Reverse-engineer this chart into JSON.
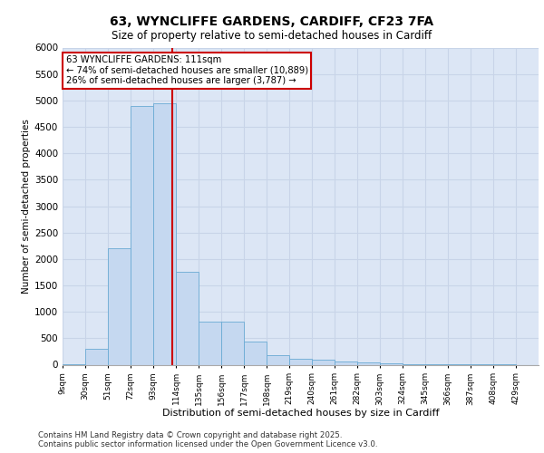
{
  "title_line1": "63, WYNCLIFFE GARDENS, CARDIFF, CF23 7FA",
  "title_line2": "Size of property relative to semi-detached houses in Cardiff",
  "xlabel": "Distribution of semi-detached houses by size in Cardiff",
  "ylabel": "Number of semi-detached properties",
  "footer_line1": "Contains HM Land Registry data © Crown copyright and database right 2025.",
  "footer_line2": "Contains public sector information licensed under the Open Government Licence v3.0.",
  "property_size": 111,
  "property_label": "63 WYNCLIFFE GARDENS: 111sqm",
  "pct_smaller": 74,
  "n_smaller": 10889,
  "pct_larger": 26,
  "n_larger": 3787,
  "bin_labels": [
    "9sqm",
    "30sqm",
    "51sqm",
    "72sqm",
    "93sqm",
    "114sqm",
    "135sqm",
    "156sqm",
    "177sqm",
    "198sqm",
    "219sqm",
    "240sqm",
    "261sqm",
    "282sqm",
    "303sqm",
    "324sqm",
    "345sqm",
    "366sqm",
    "387sqm",
    "408sqm",
    "429sqm"
  ],
  "bin_edges": [
    9,
    30,
    51,
    72,
    93,
    114,
    135,
    156,
    177,
    198,
    219,
    240,
    261,
    282,
    303,
    324,
    345,
    366,
    387,
    408,
    429
  ],
  "bar_heights": [
    10,
    300,
    2200,
    4900,
    4950,
    1750,
    820,
    820,
    430,
    175,
    120,
    90,
    60,
    35,
    20,
    10,
    8,
    5,
    3,
    2,
    0
  ],
  "bar_color": "#c5d8f0",
  "bar_edge_color": "#6aaad4",
  "grid_color": "#c8d4e8",
  "background_color": "#dce6f5",
  "vline_color": "#cc0000",
  "annotation_box_color": "#cc0000",
  "ylim": [
    0,
    6000
  ],
  "yticks": [
    0,
    500,
    1000,
    1500,
    2000,
    2500,
    3000,
    3500,
    4000,
    4500,
    5000,
    5500,
    6000
  ]
}
